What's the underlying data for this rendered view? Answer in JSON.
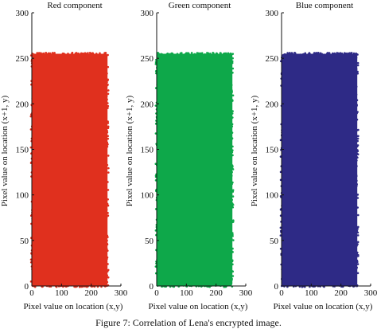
{
  "caption": "Figure 7: Correlation of Lena's encrypted image.",
  "chart_data": [
    {
      "type": "scatter",
      "title": "Red component",
      "xlabel": "Pixel value on location (x,y)",
      "ylabel": "Pixel value on location (x+1, y)",
      "xlim": [
        0,
        300
      ],
      "ylim": [
        0,
        300
      ],
      "xticks": [
        0,
        100,
        200,
        300
      ],
      "yticks": [
        0,
        50,
        100,
        150,
        200,
        250,
        300
      ],
      "color": "#e0301e",
      "points_range": {
        "x": [
          0,
          255
        ],
        "y": [
          0,
          255
        ]
      }
    },
    {
      "type": "scatter",
      "title": "Green component",
      "xlabel": "Pixel value on location (x,y)",
      "ylabel": "Pixel value on location (x+1, y)",
      "xlim": [
        0,
        300
      ],
      "ylim": [
        0,
        300
      ],
      "xticks": [
        0,
        100,
        200,
        300
      ],
      "yticks": [
        0,
        50,
        100,
        150,
        200,
        250,
        300
      ],
      "color": "#0ea84a",
      "points_range": {
        "x": [
          0,
          255
        ],
        "y": [
          0,
          255
        ]
      }
    },
    {
      "type": "scatter",
      "title": "Blue component",
      "xlabel": "Pixel value on location (x,y)",
      "ylabel": "Pixel value on location (x+1, y)",
      "xlim": [
        0,
        300
      ],
      "ylim": [
        0,
        300
      ],
      "xticks": [
        0,
        100,
        200,
        300
      ],
      "yticks": [
        0,
        50,
        100,
        150,
        200,
        250,
        300
      ],
      "color": "#2e2a86",
      "points_range": {
        "x": [
          0,
          255
        ],
        "y": [
          0,
          255
        ]
      }
    }
  ]
}
